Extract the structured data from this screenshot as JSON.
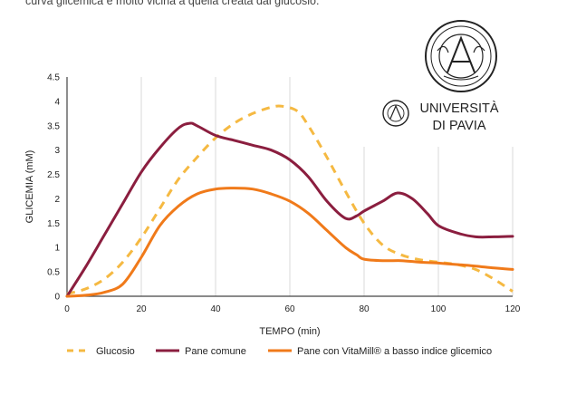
{
  "caption": "curva glicemica è molto vicina a quella creata dal glucosio.",
  "logo": {
    "line1": "UNIVERSITÀ",
    "line2": "DI PAVIA"
  },
  "chart_data": {
    "type": "line",
    "xlabel": "TEMPO (min)",
    "ylabel": "GLICEMIA (mM)",
    "xlim": [
      0,
      120
    ],
    "ylim": [
      0,
      4.5
    ],
    "xticks": [
      "0",
      "20",
      "40",
      "60",
      "80",
      "100",
      "120"
    ],
    "yticks": [
      "0",
      "0.5",
      "1",
      "1.5",
      "2",
      "2.5",
      "3",
      "3.5",
      "4",
      "4.5"
    ],
    "grid": "vertical",
    "legend_position": "bottom",
    "series": [
      {
        "name": "Glucosio",
        "color": "#f5b942",
        "dashed": true,
        "x": [
          0,
          5,
          10,
          15,
          20,
          25,
          30,
          35,
          40,
          45,
          50,
          55,
          58,
          62,
          65,
          70,
          75,
          80,
          85,
          90,
          95,
          100,
          105,
          110,
          115,
          120
        ],
        "y": [
          0.05,
          0.15,
          0.35,
          0.7,
          1.2,
          1.8,
          2.4,
          2.85,
          3.25,
          3.55,
          3.75,
          3.88,
          3.9,
          3.8,
          3.5,
          2.85,
          2.15,
          1.5,
          1.05,
          0.85,
          0.75,
          0.7,
          0.65,
          0.55,
          0.35,
          0.1
        ]
      },
      {
        "name": "Pane comune",
        "color": "#8b1e3f",
        "dashed": false,
        "x": [
          0,
          5,
          10,
          15,
          20,
          25,
          30,
          33,
          35,
          40,
          45,
          50,
          55,
          60,
          65,
          70,
          75,
          78,
          80,
          85,
          89,
          93,
          97,
          100,
          105,
          110,
          115,
          120
        ],
        "y": [
          0,
          0.6,
          1.25,
          1.9,
          2.55,
          3.05,
          3.45,
          3.55,
          3.5,
          3.3,
          3.2,
          3.1,
          3.0,
          2.8,
          2.45,
          1.95,
          1.6,
          1.65,
          1.75,
          1.95,
          2.12,
          2.0,
          1.7,
          1.45,
          1.3,
          1.22,
          1.22,
          1.23
        ]
      },
      {
        "name": "Pane con VitaMill® a basso indice glicemico",
        "color": "#f07a1a",
        "dashed": false,
        "x": [
          0,
          5,
          10,
          15,
          20,
          25,
          30,
          35,
          40,
          45,
          50,
          55,
          60,
          65,
          70,
          75,
          78,
          80,
          85,
          90,
          95,
          100,
          105,
          110,
          115,
          120
        ],
        "y": [
          0,
          0.02,
          0.08,
          0.25,
          0.8,
          1.45,
          1.85,
          2.1,
          2.2,
          2.22,
          2.2,
          2.1,
          1.95,
          1.7,
          1.35,
          1.0,
          0.85,
          0.76,
          0.73,
          0.73,
          0.7,
          0.68,
          0.65,
          0.62,
          0.58,
          0.55
        ]
      }
    ]
  }
}
